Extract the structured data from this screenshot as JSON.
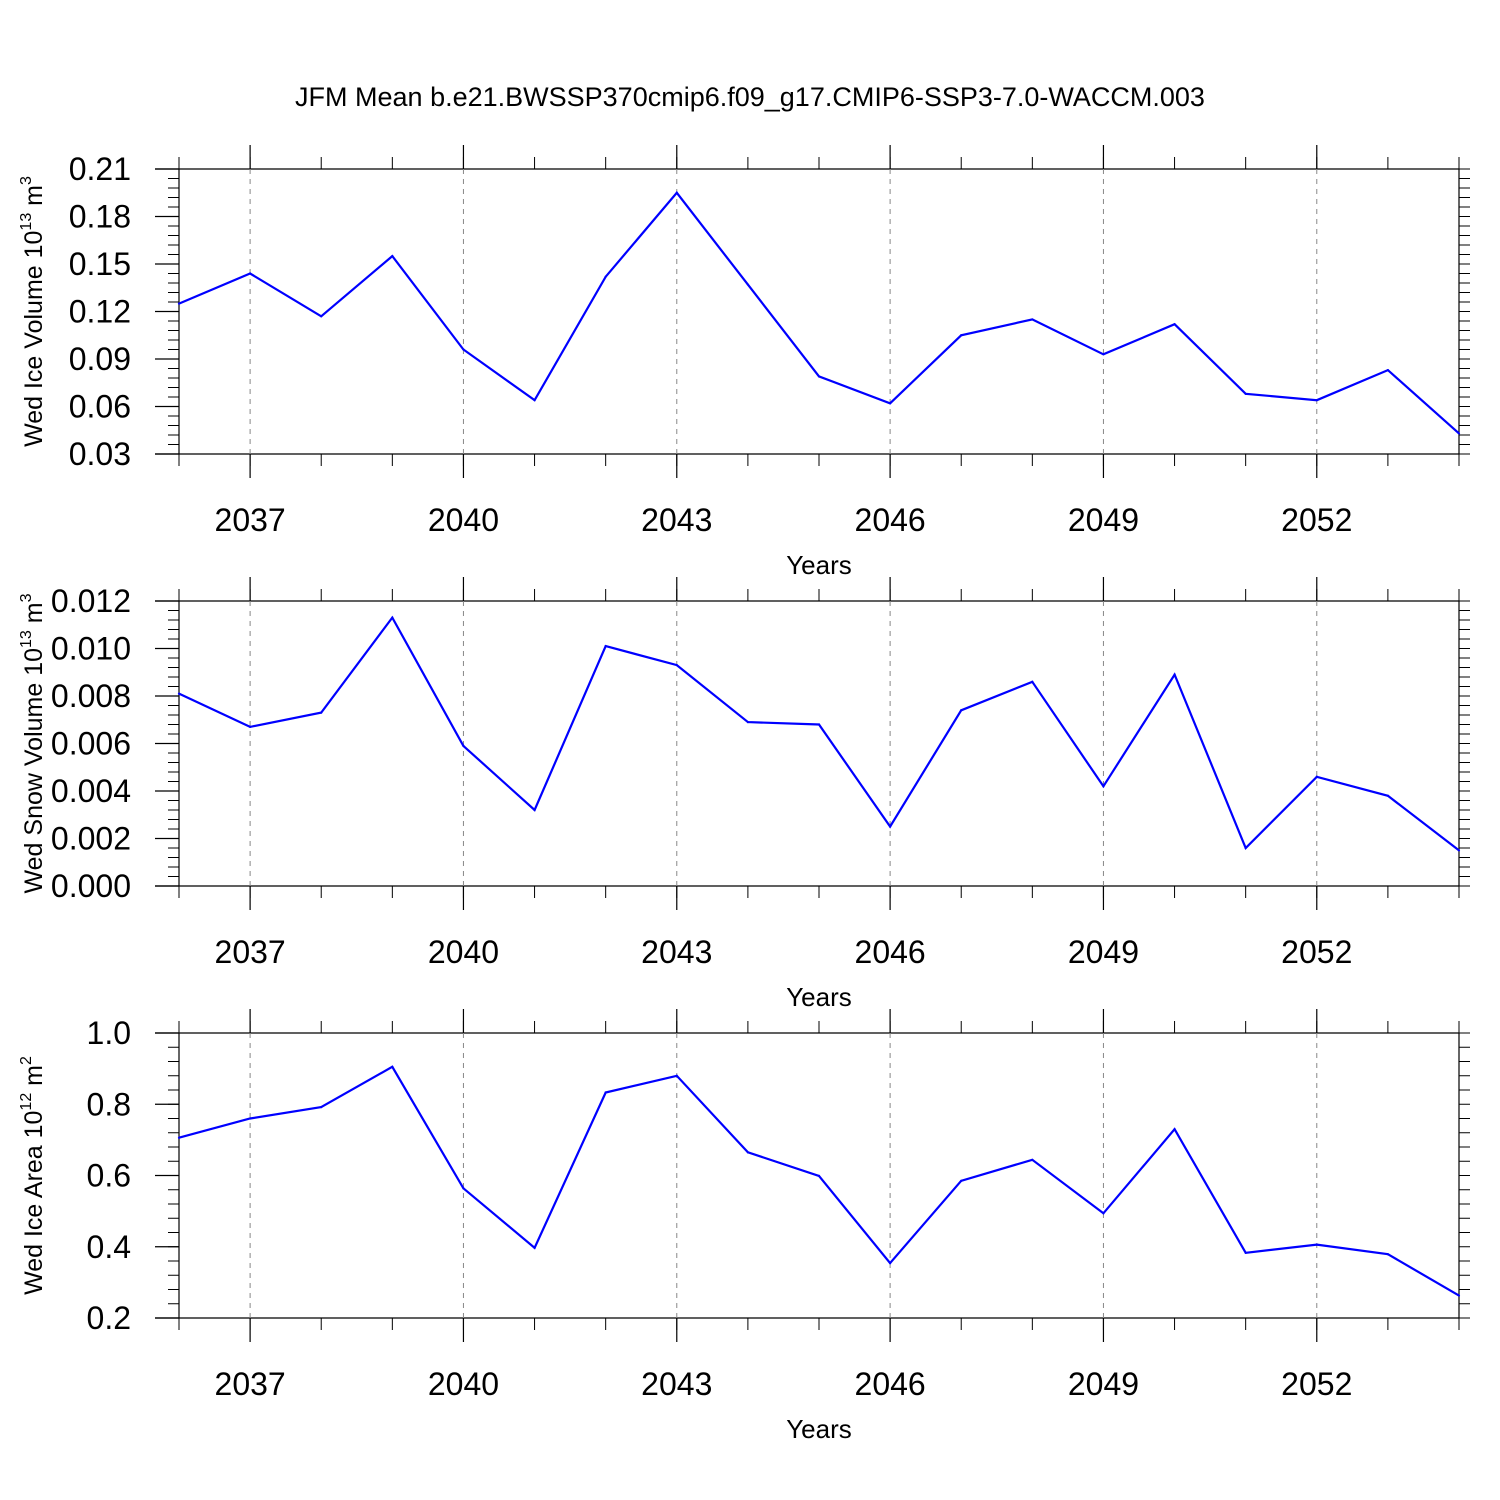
{
  "title": "JFM Mean b.e21.BWSSP370cmip6.f09_g17.CMIP6-SSP3-7.0-WACCM.003",
  "line_color": "#0000ff",
  "chart_data": [
    {
      "type": "line",
      "title": "JFM Mean b.e21.BWSSP370cmip6.f09_g17.CMIP6-SSP3-7.0-WACCM.003",
      "xlabel": "Years",
      "ylabel_main": "Wed Ice Volume 10",
      "ylabel_exp": "13",
      "ylabel_unit": " m",
      "ylabel_unit_exp": "3",
      "x": [
        2036,
        2037,
        2038,
        2039,
        2040,
        2041,
        2042,
        2043,
        2044,
        2045,
        2046,
        2047,
        2048,
        2049,
        2050,
        2051,
        2052,
        2053,
        2054
      ],
      "values": [
        0.125,
        0.144,
        0.117,
        0.155,
        0.096,
        0.064,
        0.142,
        0.195,
        0.137,
        0.079,
        0.062,
        0.105,
        0.115,
        0.093,
        0.112,
        0.068,
        0.064,
        0.083,
        0.043
      ],
      "xlim": [
        2036,
        2054
      ],
      "ylim": [
        0.03,
        0.21
      ],
      "xticks": [
        2037,
        2040,
        2043,
        2046,
        2049,
        2052
      ],
      "yticks": [
        0.03,
        0.06,
        0.09,
        0.12,
        0.15,
        0.18,
        0.21
      ],
      "ytick_labels": [
        "0.03",
        "0.06",
        "0.09",
        "0.12",
        "0.15",
        "0.18",
        "0.21"
      ],
      "y_minor_step": 0.006,
      "grid": "vertical-dashed"
    },
    {
      "type": "line",
      "xlabel": "Years",
      "ylabel_main": "Wed Snow Volume 10",
      "ylabel_exp": "13",
      "ylabel_unit": " m",
      "ylabel_unit_exp": "3",
      "x": [
        2036,
        2037,
        2038,
        2039,
        2040,
        2041,
        2042,
        2043,
        2044,
        2045,
        2046,
        2047,
        2048,
        2049,
        2050,
        2051,
        2052,
        2053,
        2054
      ],
      "values": [
        0.0081,
        0.0067,
        0.0073,
        0.0113,
        0.0059,
        0.0032,
        0.0101,
        0.0093,
        0.0069,
        0.0068,
        0.0025,
        0.0074,
        0.0086,
        0.0042,
        0.0089,
        0.0016,
        0.0046,
        0.0038,
        0.0015
      ],
      "xlim": [
        2036,
        2054
      ],
      "ylim": [
        0.0,
        0.012
      ],
      "xticks": [
        2037,
        2040,
        2043,
        2046,
        2049,
        2052
      ],
      "yticks": [
        0.0,
        0.002,
        0.004,
        0.006,
        0.008,
        0.01,
        0.012
      ],
      "ytick_labels": [
        "0.000",
        "0.002",
        "0.004",
        "0.006",
        "0.008",
        "0.010",
        "0.012"
      ],
      "y_minor_step": 0.0004,
      "grid": "vertical-dashed"
    },
    {
      "type": "line",
      "xlabel": "Years",
      "ylabel_main": "Wed Ice Area 10",
      "ylabel_exp": "12",
      "ylabel_unit": " m",
      "ylabel_unit_exp": "2",
      "x": [
        2036,
        2037,
        2038,
        2039,
        2040,
        2041,
        2042,
        2043,
        2044,
        2045,
        2046,
        2047,
        2048,
        2049,
        2050,
        2051,
        2052,
        2053,
        2054
      ],
      "values": [
        0.706,
        0.76,
        0.792,
        0.905,
        0.564,
        0.397,
        0.833,
        0.88,
        0.665,
        0.599,
        0.354,
        0.585,
        0.644,
        0.494,
        0.73,
        0.383,
        0.406,
        0.379,
        0.263
      ],
      "xlim": [
        2036,
        2054
      ],
      "ylim": [
        0.2,
        1.0
      ],
      "xticks": [
        2037,
        2040,
        2043,
        2046,
        2049,
        2052
      ],
      "yticks": [
        0.2,
        0.4,
        0.6,
        0.8,
        1.0
      ],
      "ytick_labels": [
        "0.2",
        "0.4",
        "0.6",
        "0.8",
        "1.0"
      ],
      "y_minor_step": 0.04,
      "grid": "vertical-dashed"
    }
  ]
}
